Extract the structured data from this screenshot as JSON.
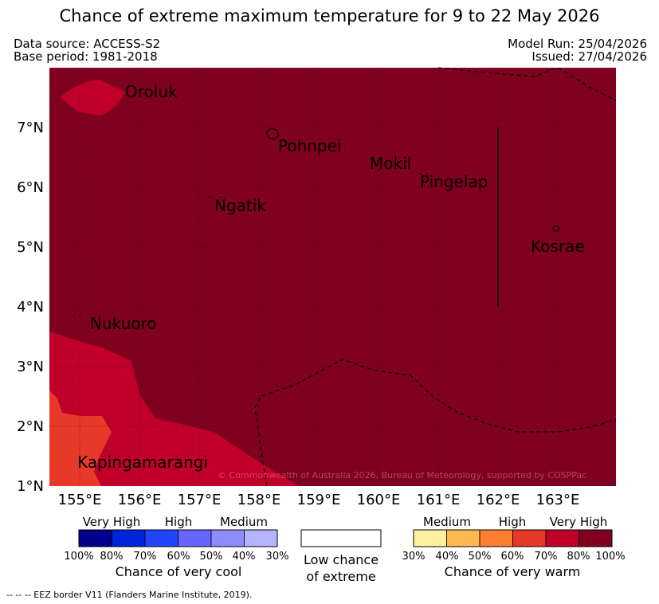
{
  "title": "Chance of extreme maximum temperature for 9 to 22 May 2026",
  "header": {
    "data_source": "Data source: ACCESS-S2",
    "base_period": "Base period: 1981-2018",
    "model_run": "Model Run: 25/04/2026",
    "issued": "Issued: 27/04/2026"
  },
  "map": {
    "x_ticks": [
      "155°E",
      "156°E",
      "157°E",
      "158°E",
      "159°E",
      "160°E",
      "161°E",
      "162°E",
      "163°E"
    ],
    "y_ticks": [
      "7°N",
      "6°N",
      "5°N",
      "4°N",
      "3°N",
      "2°N",
      "1°N"
    ],
    "places": [
      "Oroluk",
      "Pohnpei",
      "Mokil",
      "Pingelap",
      "Ngatik",
      "Kosrae",
      "Nukuoro",
      "Kapingamarangi"
    ],
    "copyright": "© Commonwealth of Australia 2026, Bureau of Meteorology, supported by COSPPac",
    "colors": {
      "very_high_warm": "#800020",
      "high_warm": "#c00028",
      "medium_high_warm": "#e83828"
    }
  },
  "legend_cool": {
    "categories": [
      "Very High",
      "High",
      "Medium"
    ],
    "ticks": [
      "100%",
      "80%",
      "70%",
      "60%",
      "50%",
      "40%",
      "30%"
    ],
    "colors": [
      "#00008c",
      "#0022d8",
      "#2244ff",
      "#6666ff",
      "#8c8cff",
      "#b4b4ff"
    ],
    "title": "Chance of very cool"
  },
  "legend_low": {
    "line1": "Low chance",
    "line2": "of extreme"
  },
  "legend_warm": {
    "categories": [
      "Medium",
      "High",
      "Very High"
    ],
    "ticks": [
      "30%",
      "40%",
      "50%",
      "60%",
      "70%",
      "80%",
      "100%"
    ],
    "colors": [
      "#fff0a0",
      "#ffb850",
      "#ff7f30",
      "#e83828",
      "#c00028",
      "#800020"
    ],
    "title": "Chance of very warm"
  },
  "footer": "--  --  -- EEZ border V11 (Flanders Marine Institute, 2019)."
}
